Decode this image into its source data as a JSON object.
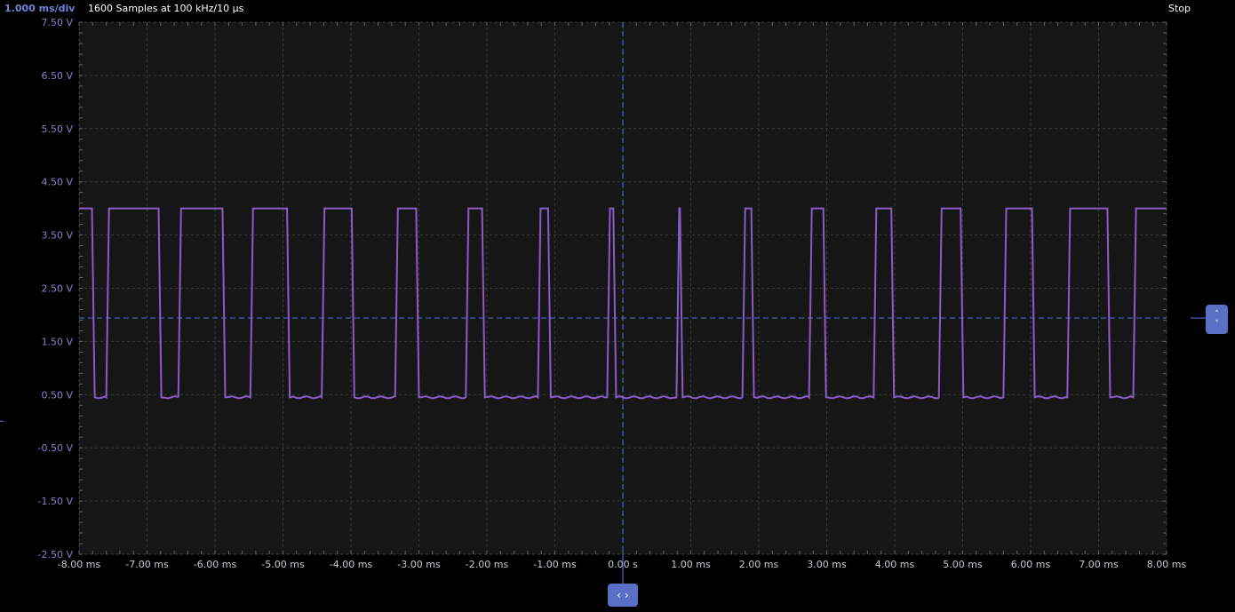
{
  "header": {
    "timebase": "1.000 ms/div",
    "acquisition": "1600 Samples at 100 kHz/10 µs",
    "run_state": "Stop"
  },
  "controls": {
    "trigger_level_icon": "chevron-up-down-icon",
    "horizontal_position_icon": "chevron-left-right-icon",
    "up": "˄",
    "down": "˅",
    "left_right": "‹ ›"
  },
  "colors": {
    "trace": "#8a5cc8",
    "cursor": "#4a66c8",
    "grid": "#3a3a3a",
    "plot_bg": "#161616",
    "button": "#5a6fc6"
  },
  "chart_data": {
    "type": "line",
    "xlim": [
      -8,
      8
    ],
    "ylim": [
      -2.5,
      7.5
    ],
    "grid": true,
    "x_ticks": [
      -8,
      -7,
      -6,
      -5,
      -4,
      -3,
      -2,
      -1,
      0,
      1,
      2,
      3,
      4,
      5,
      6,
      7,
      8
    ],
    "x_tick_labels": [
      "-8.00 ms",
      "-7.00 ms",
      "-6.00 ms",
      "-5.00 ms",
      "-4.00 ms",
      "-3.00 ms",
      "-2.00 ms",
      "-1.00 ms",
      "0.00 s",
      "1.00 ms",
      "2.00 ms",
      "3.00 ms",
      "4.00 ms",
      "5.00 ms",
      "6.00 ms",
      "7.00 ms",
      "8.00 ms"
    ],
    "y_ticks": [
      7.5,
      6.5,
      5.5,
      4.5,
      3.5,
      2.5,
      1.5,
      0.5,
      -0.5,
      -1.5,
      -2.5
    ],
    "y_tick_labels": [
      "7.50 V",
      "6.50 V",
      "5.50 V",
      "4.50 V",
      "3.50 V",
      "2.50 V",
      "1.50 V",
      "0.50 V",
      "-0.50 V",
      "-1.50 V",
      "-2.50 V"
    ],
    "series": [
      {
        "high_v": 4.0,
        "low_v": 0.45,
        "initial_state": "high",
        "transitions_ms": [
          -7.79,
          -7.58,
          -6.81,
          -6.52,
          -5.87,
          -5.46,
          -4.92,
          -4.41,
          -3.97,
          -3.33,
          -3.02,
          -2.29,
          -2.05,
          -1.23,
          -1.08,
          -0.21,
          -0.12,
          0.81,
          0.86,
          1.78,
          1.91,
          2.76,
          2.97,
          3.71,
          3.97,
          4.67,
          4.99,
          5.62,
          6.04,
          6.56,
          7.15,
          7.53
        ]
      }
    ],
    "trigger_level_v": 1.94,
    "trigger_time_ms": 0
  }
}
